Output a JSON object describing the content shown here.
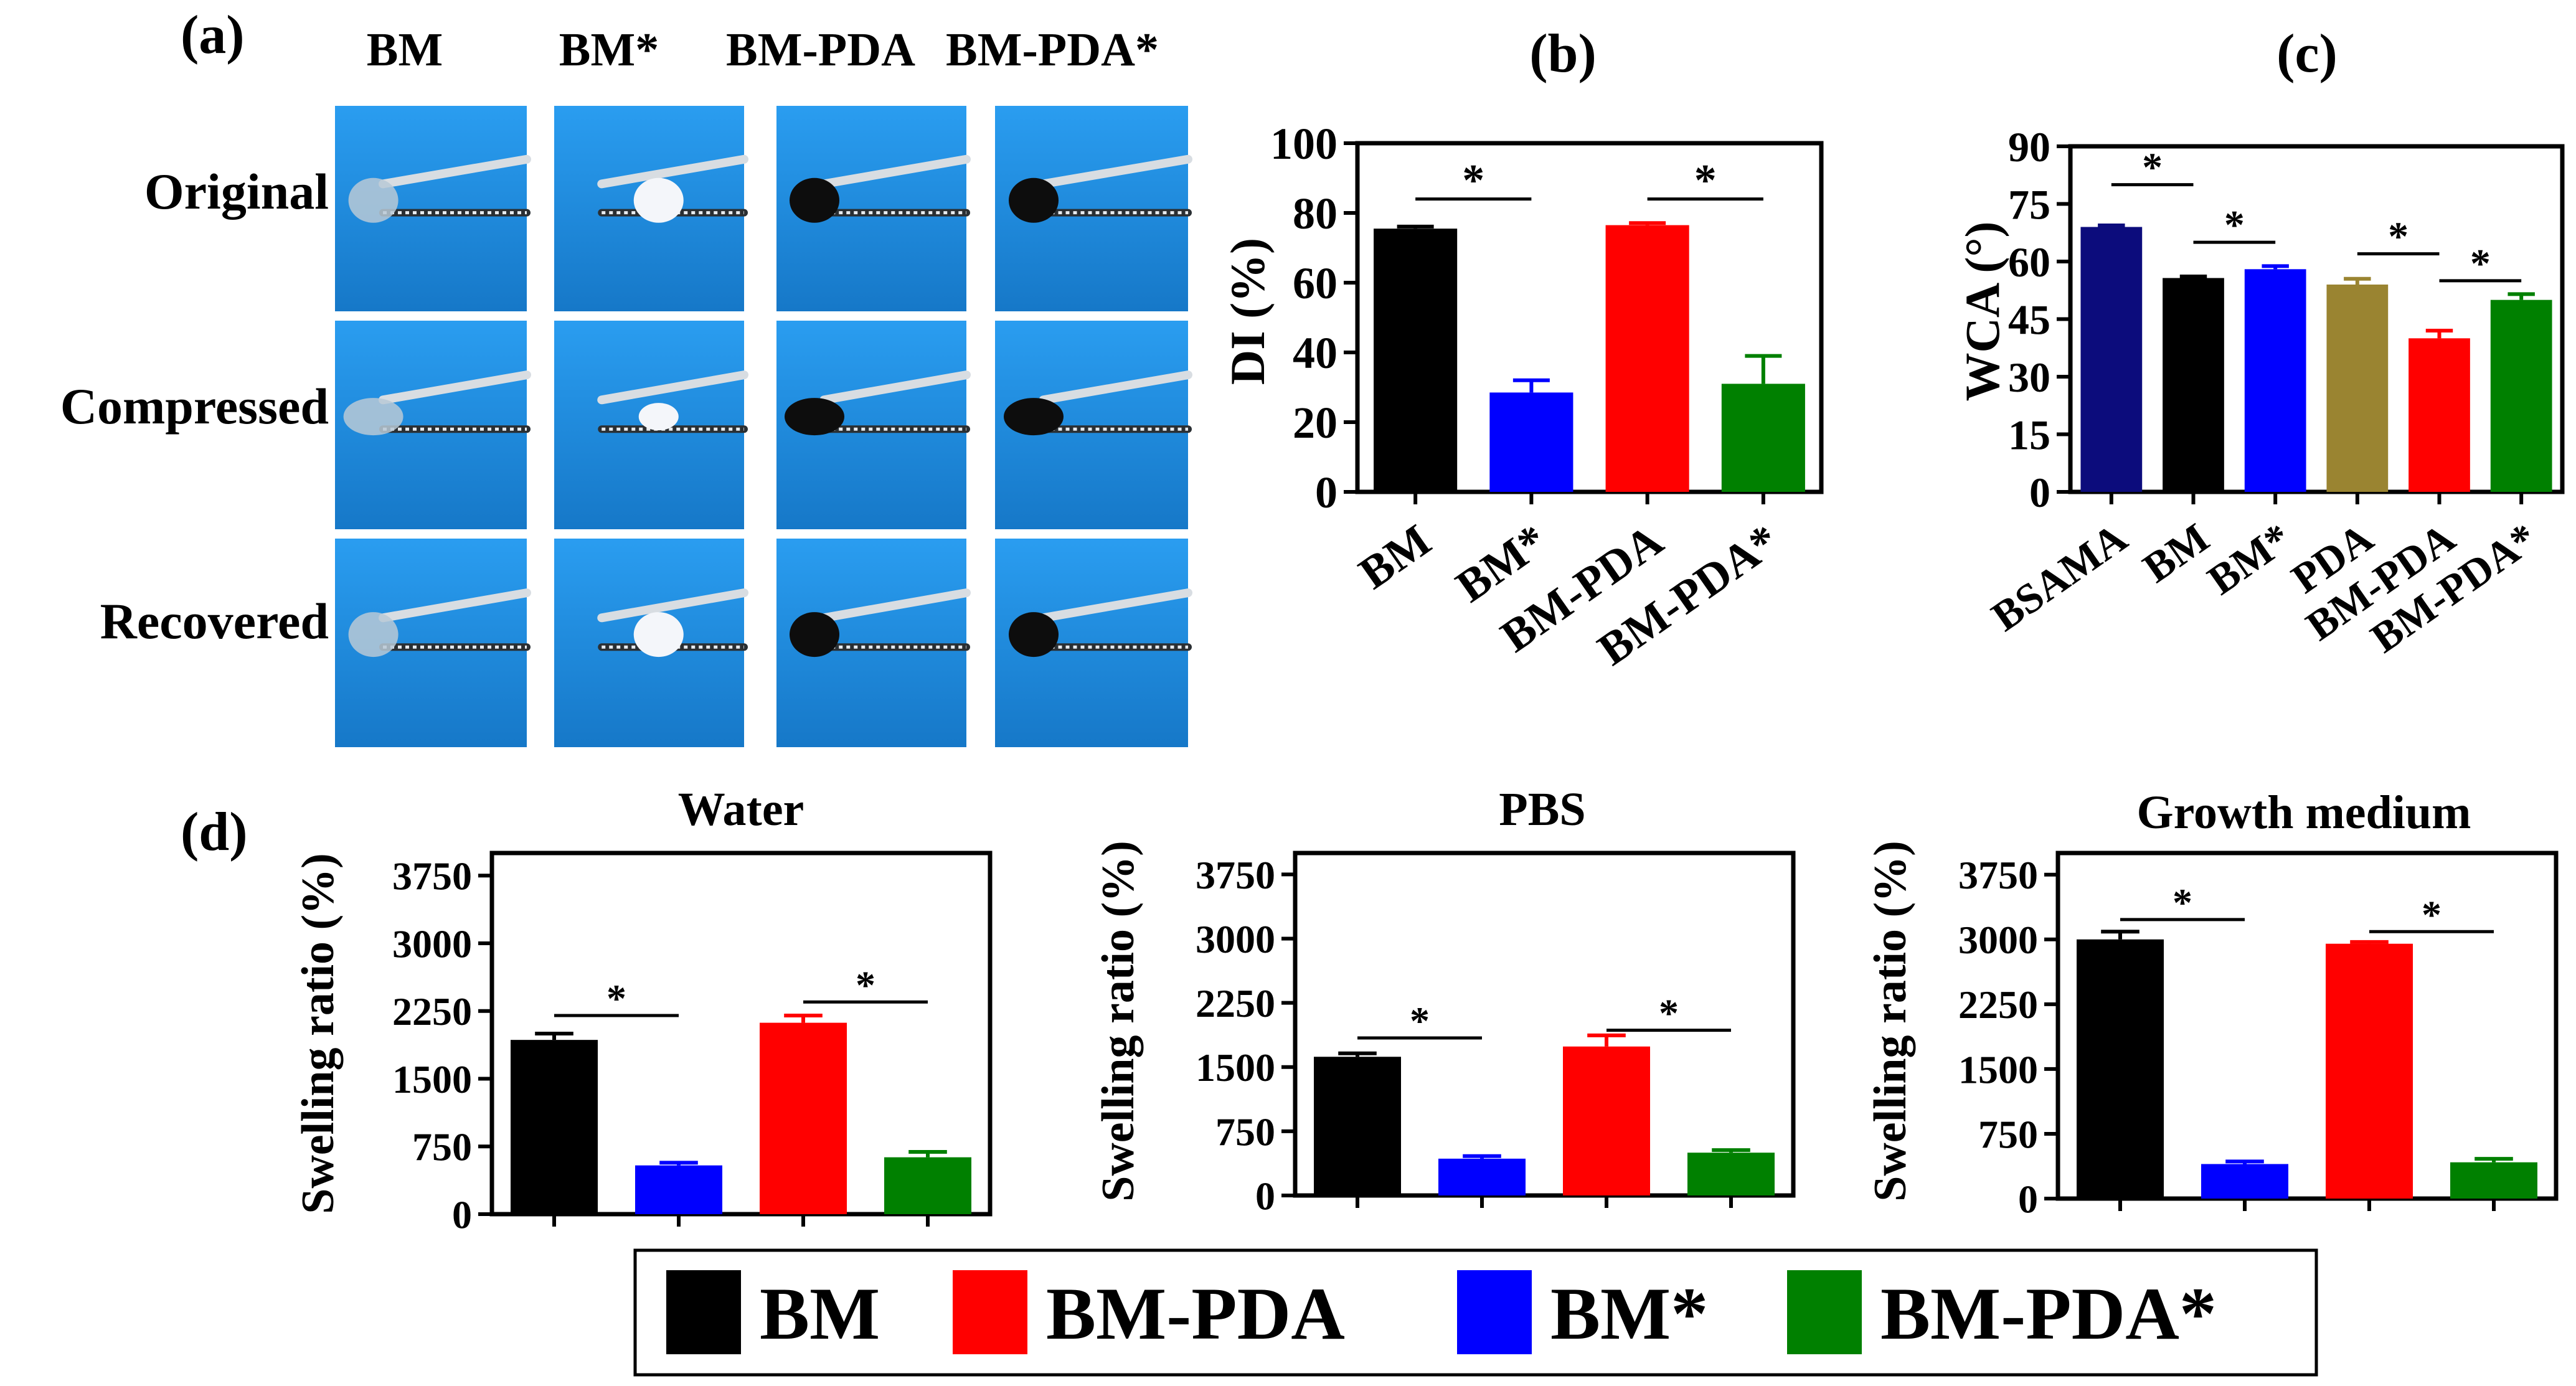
{
  "panel_a": {
    "label": "(a)",
    "columns": [
      "BM",
      "BM*",
      "BM-PDA",
      "BM-PDA*"
    ],
    "rows": [
      "Original",
      "Compressed",
      "Recovered"
    ]
  },
  "colors": {
    "BM": "#000000",
    "BM*": "#0000ff",
    "BM-PDA": "#ff0000",
    "BM-PDA*": "#008000",
    "BSAMA": "#0c0c7c",
    "PDA": "#9a8431",
    "photo_bg": "#1f8ee0"
  },
  "chart_data": [
    {
      "id": "b",
      "type": "bar",
      "panel_label": "(b)",
      "ylabel": "DI (%)",
      "ylim": [
        0,
        100
      ],
      "yticks": [
        "0",
        "20",
        "40",
        "60",
        "80",
        "100"
      ],
      "categories": [
        "BM",
        "BM*",
        "BM-PDA",
        "BM-PDA*"
      ],
      "values": [
        75.5,
        28.5,
        76.5,
        31
      ],
      "errors": [
        0.6,
        3.5,
        0.6,
        8
      ],
      "significance": [
        {
          "from": 0,
          "to": 1,
          "y": 84,
          "label": "*"
        },
        {
          "from": 2,
          "to": 3,
          "y": 84,
          "label": "*"
        }
      ]
    },
    {
      "id": "c",
      "type": "bar",
      "panel_label": "(c)",
      "ylabel": "WCA (°)",
      "ylim": [
        0,
        90
      ],
      "yticks": [
        "0",
        "15",
        "30",
        "45",
        "60",
        "75",
        "90"
      ],
      "categories": [
        "BSAMA",
        "BM",
        "BM*",
        "PDA",
        "BM-PDA",
        "BM-PDA*"
      ],
      "values": [
        69,
        55.7,
        58,
        54,
        40,
        50
      ],
      "errors": [
        0.4,
        0.4,
        0.8,
        1.5,
        2,
        1.5
      ],
      "significance": [
        {
          "from": 0,
          "to": 1,
          "y": 80,
          "label": "*"
        },
        {
          "from": 1,
          "to": 2,
          "y": 65,
          "label": "*"
        },
        {
          "from": 3,
          "to": 4,
          "y": 62,
          "label": "*"
        },
        {
          "from": 4,
          "to": 5,
          "y": 55,
          "label": "*"
        }
      ]
    },
    {
      "id": "d1",
      "type": "bar",
      "panel_label": "(d)",
      "title": "Water",
      "ylabel": "Swelling ratio (%)",
      "ylim": [
        0,
        4000
      ],
      "yticks": [
        "0",
        "750",
        "1500",
        "2250",
        "3000",
        "3750"
      ],
      "categories": [
        "BM",
        "BM*",
        "BM-PDA",
        "BM-PDA*"
      ],
      "values": [
        1930,
        540,
        2120,
        630
      ],
      "errors": [
        70,
        30,
        80,
        60
      ],
      "significance": [
        {
          "from": 0,
          "to": 1,
          "y": 2200,
          "label": "*"
        },
        {
          "from": 2,
          "to": 3,
          "y": 2350,
          "label": "*"
        }
      ]
    },
    {
      "id": "d2",
      "type": "bar",
      "title": "PBS",
      "ylabel": "Swelling ratio (%)",
      "ylim": [
        0,
        4000
      ],
      "yticks": [
        "0",
        "750",
        "1500",
        "2250",
        "3000",
        "3750"
      ],
      "categories": [
        "BM",
        "BM*",
        "BM-PDA",
        "BM-PDA*"
      ],
      "values": [
        1620,
        430,
        1740,
        500
      ],
      "errors": [
        40,
        30,
        130,
        30
      ],
      "significance": [
        {
          "from": 0,
          "to": 1,
          "y": 1840,
          "label": "*"
        },
        {
          "from": 2,
          "to": 3,
          "y": 1930,
          "label": "*"
        }
      ]
    },
    {
      "id": "d3",
      "type": "bar",
      "title": "Growth medium",
      "ylabel": "Swelling ratio (%)",
      "ylim": [
        0,
        4000
      ],
      "yticks": [
        "0",
        "750",
        "1500",
        "2250",
        "3000",
        "3750"
      ],
      "categories": [
        "BM",
        "BM*",
        "BM-PDA",
        "BM-PDA*"
      ],
      "values": [
        3000,
        400,
        2950,
        420
      ],
      "errors": [
        90,
        30,
        20,
        40
      ],
      "significance": [
        {
          "from": 0,
          "to": 1,
          "y": 3230,
          "label": "*"
        },
        {
          "from": 2,
          "to": 3,
          "y": 3090,
          "label": "*"
        }
      ]
    }
  ],
  "legend": {
    "items": [
      "BM",
      "BM-PDA",
      "BM*",
      "BM-PDA*"
    ]
  }
}
